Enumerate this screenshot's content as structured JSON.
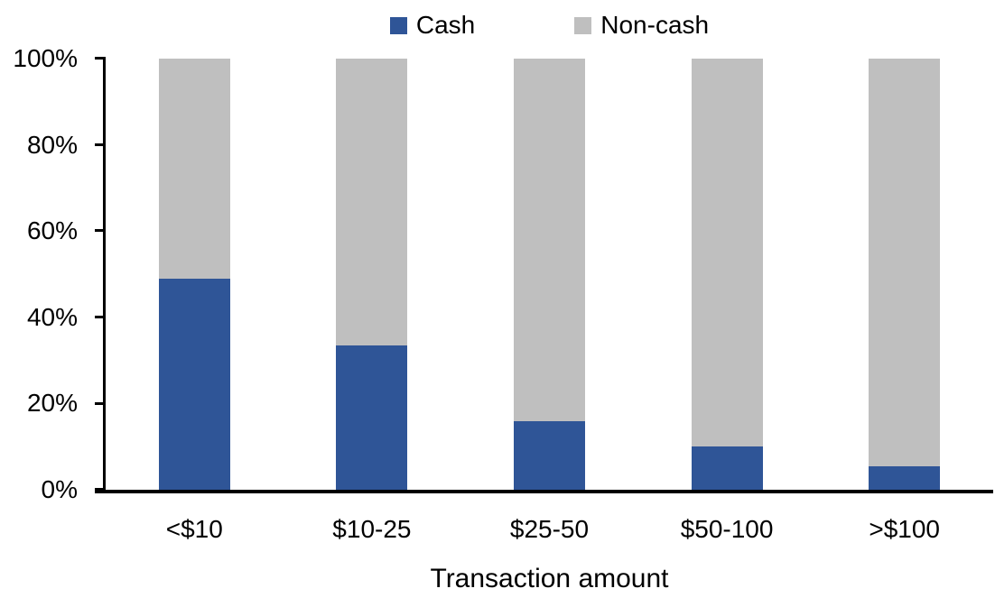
{
  "chart_data": {
    "type": "bar",
    "stacked": true,
    "percent_stacked": true,
    "title": "",
    "xlabel": "Transaction amount",
    "ylabel": "",
    "categories": [
      "<$10",
      "$10-25",
      "$25-50",
      "$50-100",
      ">$100"
    ],
    "series": [
      {
        "name": "Cash",
        "color": "#2F5597",
        "values": [
          49,
          33.5,
          16,
          10,
          5.5
        ]
      },
      {
        "name": "Non-cash",
        "color": "#BFBFBF",
        "values": [
          51,
          66.5,
          84,
          90,
          94.5
        ]
      }
    ],
    "ylim": [
      0,
      100
    ],
    "yticks": [
      "0%",
      "20%",
      "40%",
      "60%",
      "80%",
      "100%"
    ],
    "grid": false,
    "legend_position": "top-center",
    "axis_color": "#000000",
    "background_color": "#FFFFFF"
  }
}
